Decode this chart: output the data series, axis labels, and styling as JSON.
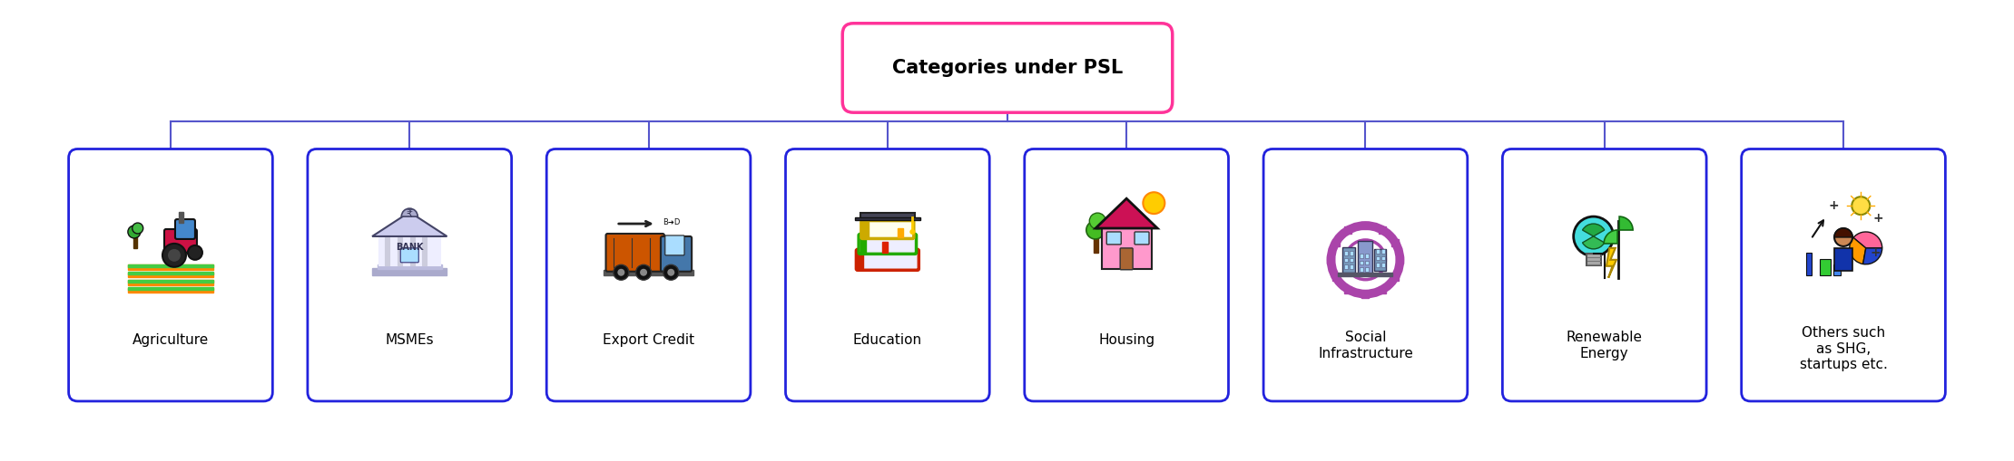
{
  "title": "Categories under PSL",
  "title_box_color": "#FF3399",
  "title_text_color": "#000000",
  "title_fontsize": 15,
  "title_fontweight": "bold",
  "categories": [
    {
      "label": "Agriculture"
    },
    {
      "label": "MSMEs"
    },
    {
      "label": "Export Credit"
    },
    {
      "label": "Education"
    },
    {
      "label": "Housing"
    },
    {
      "label": "Social\nInfrastructure"
    },
    {
      "label": "Renewable\nEnergy"
    },
    {
      "label": "Others such\nas SHG,\nstartups etc."
    }
  ],
  "box_border_color": "#2222DD",
  "box_bg_color": "#FFFFFF",
  "connector_color": "#5555CC",
  "label_fontsize": 11,
  "label_color": "#000000",
  "background_color": "#FFFFFF",
  "figsize": [
    22.19,
    5.09
  ],
  "dpi": 100
}
